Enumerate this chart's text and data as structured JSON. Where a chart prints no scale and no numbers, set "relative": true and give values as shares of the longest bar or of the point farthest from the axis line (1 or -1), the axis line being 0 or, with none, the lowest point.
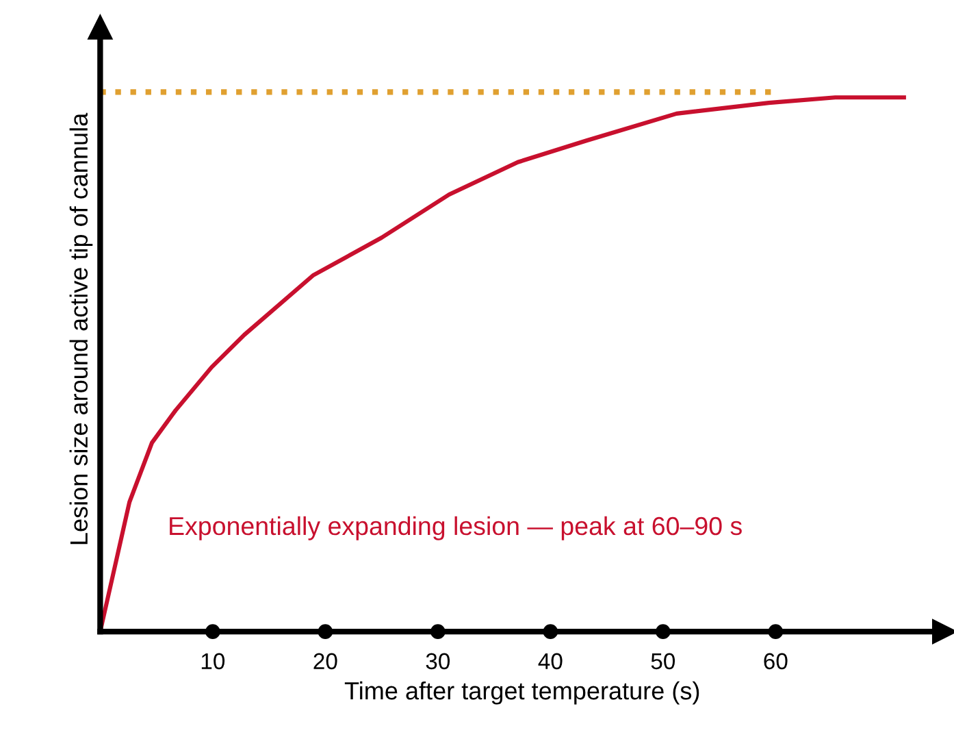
{
  "chart_data": {
    "type": "line",
    "relative": true,
    "xlabel": "Time after target temperature (s)",
    "ylabel": "Lesion size around active tip of cannula",
    "xlim": [
      0,
      75
    ],
    "xticks": [
      10,
      20,
      30,
      40,
      50,
      60
    ],
    "tick_labels": "x",
    "grid": false,
    "legend": false,
    "annotations": [
      "Exponentially expanding lesion — peak at 60–90 s"
    ],
    "series": [
      {
        "color": "#c8102e",
        "line_style": "solid",
        "x": [
          0,
          2.6,
          4.6,
          6.7,
          9.9,
          12.8,
          18.9,
          25.0,
          31.0,
          37.1,
          43.2,
          51.2,
          59.4,
          65.3,
          71.4
        ],
        "values": [
          0,
          0.24,
          0.35,
          0.41,
          0.49,
          0.55,
          0.66,
          0.73,
          0.81,
          0.87,
          0.91,
          0.96,
          0.98,
          0.99,
          0.99
        ]
      },
      {
        "color": "#e0a030",
        "line_style": "dotted",
        "x": [
          0,
          60
        ],
        "values": [
          1.0,
          1.0
        ]
      }
    ]
  }
}
